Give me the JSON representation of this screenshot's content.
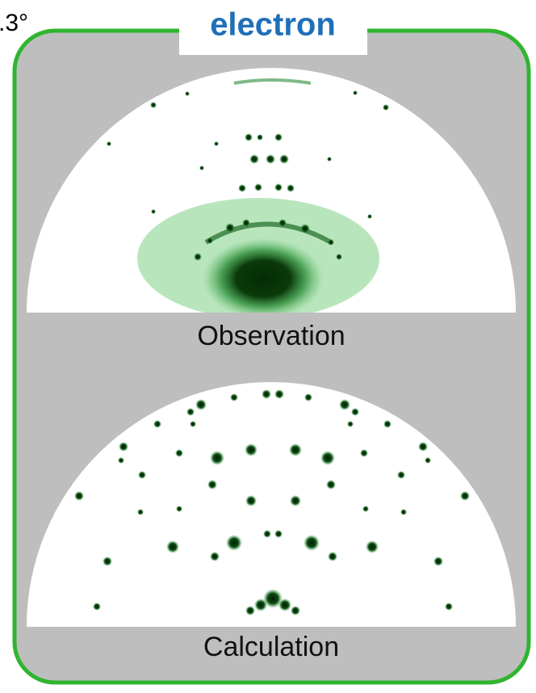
{
  "corner_label": ".3°",
  "title": "electron",
  "panels": [
    {
      "label": "Observation"
    },
    {
      "label": "Calculation"
    }
  ]
}
